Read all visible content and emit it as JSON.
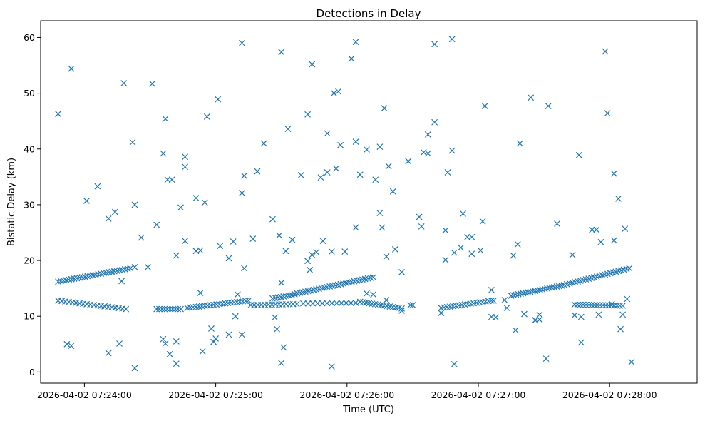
{
  "chart_data": {
    "type": "scatter",
    "title": "Detections in Delay",
    "xlabel": "Time (UTC)",
    "ylabel": "Bistatic Delay (km)",
    "marker": "x",
    "color": "#1f77b4",
    "xlim": [
      "2026-04-02 07:23:40",
      "2026-04-02 07:28:40"
    ],
    "ylim": [
      -2,
      63
    ],
    "xticks": [
      {
        "value": "2026-04-02 07:24:00",
        "label": "2026-04-02 07:24:00"
      },
      {
        "value": "2026-04-02 07:25:00",
        "label": "2026-04-02 07:25:00"
      },
      {
        "value": "2026-04-02 07:26:00",
        "label": "2026-04-02 07:26:00"
      },
      {
        "value": "2026-04-02 07:27:00",
        "label": "2026-04-02 07:27:00"
      },
      {
        "value": "2026-04-02 07:28:00",
        "label": "2026-04-02 07:28:00"
      }
    ],
    "yticks": [
      0,
      10,
      20,
      30,
      40,
      50,
      60
    ],
    "grid": false,
    "legend": "none",
    "points": [
      [
        "07:23:48",
        46.3
      ],
      [
        "07:23:54",
        54.4
      ],
      [
        "07:24:01",
        30.7
      ],
      [
        "07:24:06",
        33.3
      ],
      [
        "07:24:11",
        27.5
      ],
      [
        "07:24:14",
        28.7
      ],
      [
        "07:24:18",
        51.8
      ],
      [
        "07:24:22",
        41.2
      ],
      [
        "07:24:23",
        30.0
      ],
      [
        "07:24:26",
        24.1
      ],
      [
        "07:24:31",
        51.7
      ],
      [
        "07:24:33",
        26.4
      ],
      [
        "07:24:36",
        39.2
      ],
      [
        "07:24:37",
        45.4
      ],
      [
        "07:24:38",
        34.5
      ],
      [
        "07:24:40",
        34.5
      ],
      [
        "07:24:42",
        20.9
      ],
      [
        "07:24:44",
        29.5
      ],
      [
        "07:24:46",
        38.6
      ],
      [
        "07:24:46",
        36.8
      ],
      [
        "07:24:46",
        23.5
      ],
      [
        "07:24:51",
        31.2
      ],
      [
        "07:24:53",
        21.8
      ],
      [
        "07:24:55",
        30.4
      ],
      [
        "07:24:56",
        45.8
      ],
      [
        "07:25:01",
        48.9
      ],
      [
        "07:25:02",
        22.6
      ],
      [
        "07:25:06",
        20.4
      ],
      [
        "07:25:08",
        23.4
      ],
      [
        "07:25:12",
        59.0
      ],
      [
        "07:25:13",
        35.2
      ],
      [
        "07:25:12",
        32.1
      ],
      [
        "07:25:13",
        18.6
      ],
      [
        "07:25:17",
        23.9
      ],
      [
        "07:25:19",
        36.0
      ],
      [
        "07:25:22",
        41.0
      ],
      [
        "07:25:26",
        27.4
      ],
      [
        "07:25:30",
        57.4
      ],
      [
        "07:25:29",
        24.5
      ],
      [
        "07:25:32",
        21.7
      ],
      [
        "07:25:33",
        43.6
      ],
      [
        "07:25:35",
        23.7
      ],
      [
        "07:25:39",
        35.3
      ],
      [
        "07:25:42",
        46.2
      ],
      [
        "07:25:44",
        55.2
      ],
      [
        "07:25:46",
        21.5
      ],
      [
        "07:25:48",
        34.9
      ],
      [
        "07:25:49",
        23.5
      ],
      [
        "07:25:51",
        42.8
      ],
      [
        "07:25:51",
        35.8
      ],
      [
        "07:25:53",
        21.6
      ],
      [
        "07:25:54",
        50.0
      ],
      [
        "07:25:55",
        36.5
      ],
      [
        "07:25:56",
        50.3
      ],
      [
        "07:25:57",
        40.7
      ],
      [
        "07:25:59",
        21.6
      ],
      [
        "07:26:02",
        56.2
      ],
      [
        "07:26:04",
        59.2
      ],
      [
        "07:26:04",
        41.3
      ],
      [
        "07:26:04",
        25.9
      ],
      [
        "07:26:06",
        35.4
      ],
      [
        "07:26:09",
        39.9
      ],
      [
        "07:26:13",
        34.5
      ],
      [
        "07:26:15",
        40.4
      ],
      [
        "07:26:15",
        28.5
      ],
      [
        "07:26:16",
        25.9
      ],
      [
        "07:26:17",
        47.3
      ],
      [
        "07:26:18",
        20.7
      ],
      [
        "07:26:19",
        36.9
      ],
      [
        "07:26:21",
        32.4
      ],
      [
        "07:26:22",
        22.0
      ],
      [
        "07:26:25",
        17.9
      ],
      [
        "07:26:25",
        11.0
      ],
      [
        "07:26:28",
        37.8
      ],
      [
        "07:26:30",
        12.0
      ],
      [
        "07:26:33",
        27.8
      ],
      [
        "07:26:34",
        26.1
      ],
      [
        "07:26:35",
        39.4
      ],
      [
        "07:26:37",
        39.2
      ],
      [
        "07:26:37",
        42.6
      ],
      [
        "07:26:40",
        58.8
      ],
      [
        "07:26:40",
        44.8
      ],
      [
        "07:26:43",
        10.6
      ],
      [
        "07:26:45",
        25.4
      ],
      [
        "07:26:45",
        20.1
      ],
      [
        "07:26:46",
        35.8
      ],
      [
        "07:26:48",
        59.7
      ],
      [
        "07:26:48",
        39.7
      ],
      [
        "07:26:49",
        21.4
      ],
      [
        "07:26:52",
        22.3
      ],
      [
        "07:26:53",
        28.4
      ],
      [
        "07:26:55",
        24.2
      ],
      [
        "07:26:57",
        24.2
      ],
      [
        "07:26:57",
        21.2
      ],
      [
        "07:27:01",
        21.8
      ],
      [
        "07:27:02",
        27.0
      ],
      [
        "07:27:03",
        47.7
      ],
      [
        "07:27:06",
        14.7
      ],
      [
        "07:27:07",
        12.8
      ],
      [
        "07:27:13",
        11.5
      ],
      [
        "07:27:15",
        13.7
      ],
      [
        "07:27:16",
        20.9
      ],
      [
        "07:27:17",
        7.5
      ],
      [
        "07:27:18",
        22.9
      ],
      [
        "07:27:19",
        41.0
      ],
      [
        "07:27:21",
        10.4
      ],
      [
        "07:27:24",
        49.2
      ],
      [
        "07:27:26",
        9.3
      ],
      [
        "07:27:28",
        9.4
      ],
      [
        "07:27:31",
        2.4
      ],
      [
        "07:27:32",
        47.7
      ],
      [
        "07:27:36",
        26.6
      ],
      [
        "07:27:43",
        21.0
      ],
      [
        "07:27:46",
        38.9
      ],
      [
        "07:27:47",
        5.3
      ],
      [
        "07:27:52",
        25.5
      ],
      [
        "07:27:54",
        25.5
      ],
      [
        "07:27:56",
        23.3
      ],
      [
        "07:27:58",
        57.5
      ],
      [
        "07:27:59",
        46.4
      ],
      [
        "07:28:02",
        35.6
      ],
      [
        "07:28:02",
        23.6
      ],
      [
        "07:28:04",
        31.1
      ],
      [
        "07:28:05",
        7.7
      ],
      [
        "07:28:07",
        25.7
      ],
      [
        "07:28:08",
        13.1
      ],
      [
        "07:28:10",
        1.8
      ],
      [
        "07:23:52",
        5.0
      ],
      [
        "07:23:54",
        4.7
      ],
      [
        "07:24:11",
        3.4
      ],
      [
        "07:24:16",
        5.1
      ],
      [
        "07:24:17",
        16.3
      ],
      [
        "07:24:23",
        18.8
      ],
      [
        "07:24:23",
        0.7
      ],
      [
        "07:24:29",
        18.8
      ],
      [
        "07:24:36",
        5.9
      ],
      [
        "07:24:37",
        5.1
      ],
      [
        "07:24:39",
        3.2
      ],
      [
        "07:24:42",
        1.5
      ],
      [
        "07:24:42",
        5.5
      ],
      [
        "07:24:51",
        21.7
      ],
      [
        "07:24:53",
        14.2
      ],
      [
        "07:24:54",
        3.7
      ],
      [
        "07:24:58",
        7.8
      ],
      [
        "07:24:59",
        5.4
      ],
      [
        "07:25:00",
        6.0
      ],
      [
        "07:25:06",
        6.7
      ],
      [
        "07:25:09",
        10.0
      ],
      [
        "07:25:10",
        13.9
      ],
      [
        "07:25:12",
        6.7
      ],
      [
        "07:25:27",
        9.8
      ],
      [
        "07:25:28",
        7.7
      ],
      [
        "07:25:30",
        1.6
      ],
      [
        "07:25:31",
        4.4
      ],
      [
        "07:25:30",
        16.0
      ],
      [
        "07:25:42",
        19.9
      ],
      [
        "07:25:43",
        18.3
      ],
      [
        "07:25:44",
        21.0
      ],
      [
        "07:25:53",
        1.0
      ],
      [
        "07:26:09",
        14.1
      ],
      [
        "07:26:12",
        13.9
      ],
      [
        "07:26:18",
        12.9
      ],
      [
        "07:26:29",
        12.0
      ],
      [
        "07:26:49",
        1.4
      ],
      [
        "07:27:06",
        9.9
      ],
      [
        "07:27:08",
        9.8
      ],
      [
        "07:27:12",
        12.9
      ],
      [
        "07:27:26",
        9.3
      ],
      [
        "07:27:28",
        10.3
      ],
      [
        "07:27:44",
        10.2
      ],
      [
        "07:27:47",
        9.9
      ],
      [
        "07:27:55",
        10.3
      ],
      [
        "07:28:01",
        12.2
      ],
      [
        "07:28:06",
        10.3
      ]
    ],
    "tracks": [
      {
        "start": [
          "07:23:48",
          16.2
        ],
        "end": [
          "07:24:21",
          18.6
        ],
        "count": 28
      },
      {
        "start": [
          "07:23:48",
          12.8
        ],
        "end": [
          "07:24:19",
          11.3
        ],
        "count": 20
      },
      {
        "start": [
          "07:24:33",
          11.3
        ],
        "end": [
          "07:24:44",
          11.3
        ],
        "count": 10
      },
      {
        "start": [
          "07:24:47",
          11.5
        ],
        "end": [
          "07:25:15",
          12.8
        ],
        "count": 22
      },
      {
        "start": [
          "07:25:16",
          12.0
        ],
        "end": [
          "07:25:37",
          12.2
        ],
        "count": 14
      },
      {
        "start": [
          "07:25:26",
          13.2
        ],
        "end": [
          "07:25:36",
          13.9
        ],
        "count": 9
      },
      {
        "start": [
          "07:25:36",
          14.0
        ],
        "end": [
          "07:26:12",
          17.0
        ],
        "count": 30
      },
      {
        "start": [
          "07:25:40",
          12.3
        ],
        "end": [
          "07:26:04",
          12.4
        ],
        "count": 12
      },
      {
        "start": [
          "07:26:06",
          12.6
        ],
        "end": [
          "07:26:25",
          11.4
        ],
        "count": 15
      },
      {
        "start": [
          "07:26:43",
          11.5
        ],
        "end": [
          "07:27:06",
          12.8
        ],
        "count": 18
      },
      {
        "start": [
          "07:27:15",
          13.7
        ],
        "end": [
          "07:27:38",
          15.5
        ],
        "count": 22
      },
      {
        "start": [
          "07:27:38",
          15.5
        ],
        "end": [
          "07:28:09",
          18.6
        ],
        "count": 26
      },
      {
        "start": [
          "07:27:44",
          12.1
        ],
        "end": [
          "07:28:06",
          11.9
        ],
        "count": 18
      }
    ]
  }
}
